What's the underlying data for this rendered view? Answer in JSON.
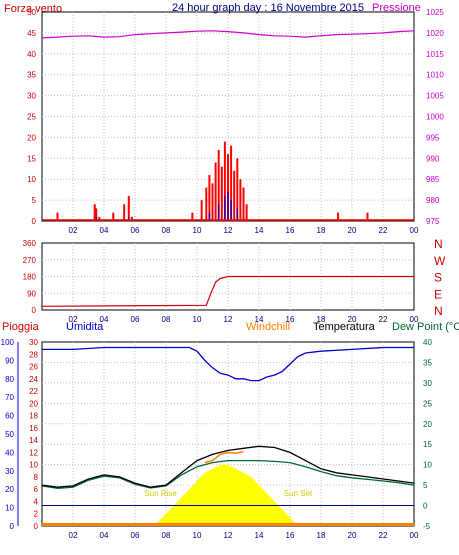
{
  "header": {
    "left_label": "Forza vento",
    "title": "24 hour graph day : 16 Novembre 2015",
    "right_label": "Pressione"
  },
  "colors": {
    "wind": "#ff0000",
    "gust": "#0000cc",
    "pressure": "#cc00cc",
    "direction": "#cc0000",
    "rain": "#ff0000",
    "humidity": "#0000cc",
    "windchill": "#ff8000",
    "temperature": "#000000",
    "dewpoint": "#006633",
    "solar": "#ffff00",
    "grid": "#c0c0c0",
    "frame": "#000000",
    "background": "#ffffff"
  },
  "chart_data": [
    {
      "type": "bar",
      "title": "",
      "left_axis": {
        "label": "Forza vento",
        "ticks": [
          0,
          5,
          10,
          15,
          20,
          25,
          30,
          35,
          40,
          45,
          50
        ],
        "range": [
          0,
          50
        ]
      },
      "right_axis": {
        "label": "Pressione",
        "ticks": [
          975,
          980,
          985,
          990,
          995,
          1000,
          1005,
          1010,
          1015,
          1020,
          1025
        ],
        "range": [
          975,
          1025
        ]
      },
      "x_ticks": [
        "02",
        "04",
        "06",
        "08",
        "10",
        "12",
        "14",
        "16",
        "18",
        "20",
        "22",
        "00"
      ],
      "x_range": [
        0,
        24
      ],
      "wind_bursts": [
        {
          "x": 1.0,
          "h": 2
        },
        {
          "x": 3.4,
          "h": 4
        },
        {
          "x": 3.5,
          "h": 3
        },
        {
          "x": 3.7,
          "h": 1
        },
        {
          "x": 4.6,
          "h": 2
        },
        {
          "x": 5.3,
          "h": 4
        },
        {
          "x": 5.6,
          "h": 6
        },
        {
          "x": 5.8,
          "h": 1
        },
        {
          "x": 9.7,
          "h": 2
        },
        {
          "x": 10.3,
          "h": 5
        },
        {
          "x": 10.6,
          "h": 8
        },
        {
          "x": 10.8,
          "h": 11
        },
        {
          "x": 11.0,
          "h": 9
        },
        {
          "x": 11.2,
          "h": 14
        },
        {
          "x": 11.4,
          "h": 17
        },
        {
          "x": 11.6,
          "h": 13
        },
        {
          "x": 11.8,
          "h": 19
        },
        {
          "x": 12.0,
          "h": 16
        },
        {
          "x": 12.2,
          "h": 18
        },
        {
          "x": 12.4,
          "h": 12
        },
        {
          "x": 12.6,
          "h": 15
        },
        {
          "x": 12.8,
          "h": 10
        },
        {
          "x": 13.0,
          "h": 8
        },
        {
          "x": 13.2,
          "h": 4
        },
        {
          "x": 19.1,
          "h": 2
        },
        {
          "x": 21.0,
          "h": 2
        }
      ],
      "gust_bursts": [
        {
          "x": 3.5,
          "h": 1
        },
        {
          "x": 5.6,
          "h": 1
        },
        {
          "x": 10.8,
          "h": 2
        },
        {
          "x": 11.4,
          "h": 4
        },
        {
          "x": 11.8,
          "h": 6
        },
        {
          "x": 12.0,
          "h": 7
        },
        {
          "x": 12.2,
          "h": 5
        },
        {
          "x": 12.6,
          "h": 3
        }
      ],
      "pressure": {
        "x": [
          0,
          1,
          2,
          3,
          4,
          5,
          6,
          7,
          8,
          9,
          10,
          11,
          12,
          13,
          14,
          15,
          16,
          17,
          18,
          19,
          20,
          21,
          22,
          23,
          24
        ],
        "y": [
          1018.8,
          1019.0,
          1019.2,
          1019.3,
          1019.0,
          1019.1,
          1019.6,
          1019.8,
          1020.0,
          1020.2,
          1020.4,
          1020.5,
          1020.3,
          1020.0,
          1019.6,
          1019.3,
          1019.2,
          1019.0,
          1019.3,
          1019.6,
          1019.7,
          1019.8,
          1020.0,
          1020.3,
          1020.5
        ]
      }
    },
    {
      "type": "line",
      "title": "",
      "left_axis": {
        "ticks": [
          0,
          90,
          180,
          270,
          360
        ],
        "range": [
          0,
          360
        ]
      },
      "right_axis": {
        "ticks": [
          "N",
          "W",
          "S",
          "E",
          "N"
        ]
      },
      "x_ticks": [
        "02",
        "04",
        "06",
        "08",
        "10",
        "12",
        "14",
        "16",
        "18",
        "20",
        "22",
        "00"
      ],
      "x_range": [
        0,
        24
      ],
      "direction": {
        "x": [
          0,
          10.6,
          10.9,
          11.2,
          11.5,
          12.0,
          13.0,
          24
        ],
        "y": [
          20,
          25,
          90,
          150,
          170,
          180,
          180,
          180
        ]
      }
    },
    {
      "type": "line",
      "title": "",
      "labels": {
        "rain": "Pioggia",
        "humidity": "Umidita",
        "windchill": "Windchill",
        "temperature": "Temperatura",
        "dewpoint": "Dew Point (°C"
      },
      "humidity_axis": {
        "ticks": [
          0,
          10,
          20,
          30,
          40,
          50,
          60,
          70,
          80,
          90,
          100
        ],
        "range": [
          0,
          100
        ]
      },
      "rain_axis": {
        "ticks": [
          0,
          2,
          4,
          6,
          8,
          10,
          12,
          14,
          16,
          18,
          20,
          22,
          24,
          26,
          28,
          30
        ],
        "range": [
          0,
          30
        ]
      },
      "temp_axis": {
        "ticks": [
          -5,
          0,
          5,
          10,
          15,
          20,
          25,
          30,
          35,
          40
        ],
        "range": [
          -5,
          40
        ]
      },
      "x_ticks": [
        "02",
        "04",
        "06",
        "08",
        "10",
        "12",
        "14",
        "16",
        "18",
        "20",
        "22",
        "00"
      ],
      "x_range": [
        0,
        24
      ],
      "annotations": {
        "sunrise": "Sun Rise",
        "sunset": "Sun Set"
      },
      "temperature": {
        "x": [
          0,
          1,
          2,
          3,
          4,
          5,
          6,
          7,
          8,
          9,
          10,
          11,
          12,
          13,
          14,
          15,
          16,
          17,
          18,
          19,
          20,
          21,
          22,
          23,
          24
        ],
        "y": [
          5.0,
          4.5,
          4.8,
          6.5,
          7.5,
          7.0,
          5.5,
          4.5,
          5.0,
          8.0,
          11.0,
          12.5,
          13.5,
          14.0,
          14.5,
          14.2,
          13.0,
          11.0,
          9.0,
          8.0,
          7.5,
          7.0,
          6.5,
          6.0,
          5.5
        ]
      },
      "dewpoint": {
        "x": [
          0,
          1,
          2,
          3,
          4,
          5,
          6,
          7,
          8,
          9,
          10,
          11,
          12,
          13,
          14,
          15,
          16,
          17,
          18,
          19,
          20,
          21,
          22,
          23,
          24
        ],
        "y": [
          4.8,
          4.2,
          4.5,
          6.2,
          7.2,
          6.8,
          5.2,
          4.3,
          4.8,
          7.5,
          9.5,
          10.5,
          11.0,
          11.0,
          11.0,
          10.8,
          10.5,
          9.5,
          8.3,
          7.3,
          6.8,
          6.4,
          6.0,
          5.6,
          5.0
        ]
      },
      "windchill": {
        "x": [
          10.5,
          11,
          11.5,
          12,
          12.5,
          13
        ],
        "y": [
          10.5,
          11.0,
          12.5,
          13.0,
          12.8,
          13.2
        ]
      },
      "humidity": {
        "x": [
          0,
          2,
          4,
          6,
          8,
          9.5,
          10,
          10.5,
          11,
          11.5,
          12,
          12.5,
          13,
          13.5,
          14,
          14.5,
          15,
          15.5,
          16,
          16.5,
          17,
          18,
          20,
          22,
          24
        ],
        "y": [
          96,
          96,
          97,
          97,
          97,
          97,
          95,
          90,
          86,
          83,
          82,
          80,
          80,
          79,
          79,
          81,
          82,
          84,
          88,
          92,
          94,
          95,
          96,
          97,
          97
        ]
      },
      "solar": {
        "x": [
          7.0,
          7.5,
          8,
          8.5,
          9,
          9.5,
          10,
          10.5,
          11,
          11.5,
          12,
          12.5,
          13,
          13.5,
          14,
          14.5,
          15,
          15.5,
          16,
          16.5
        ],
        "y": [
          0,
          1,
          3,
          5,
          7,
          9,
          11,
          13,
          14,
          15,
          15,
          14,
          13,
          12,
          10,
          8,
          6,
          4,
          2,
          0
        ]
      },
      "reference_line_temp": 0
    }
  ]
}
